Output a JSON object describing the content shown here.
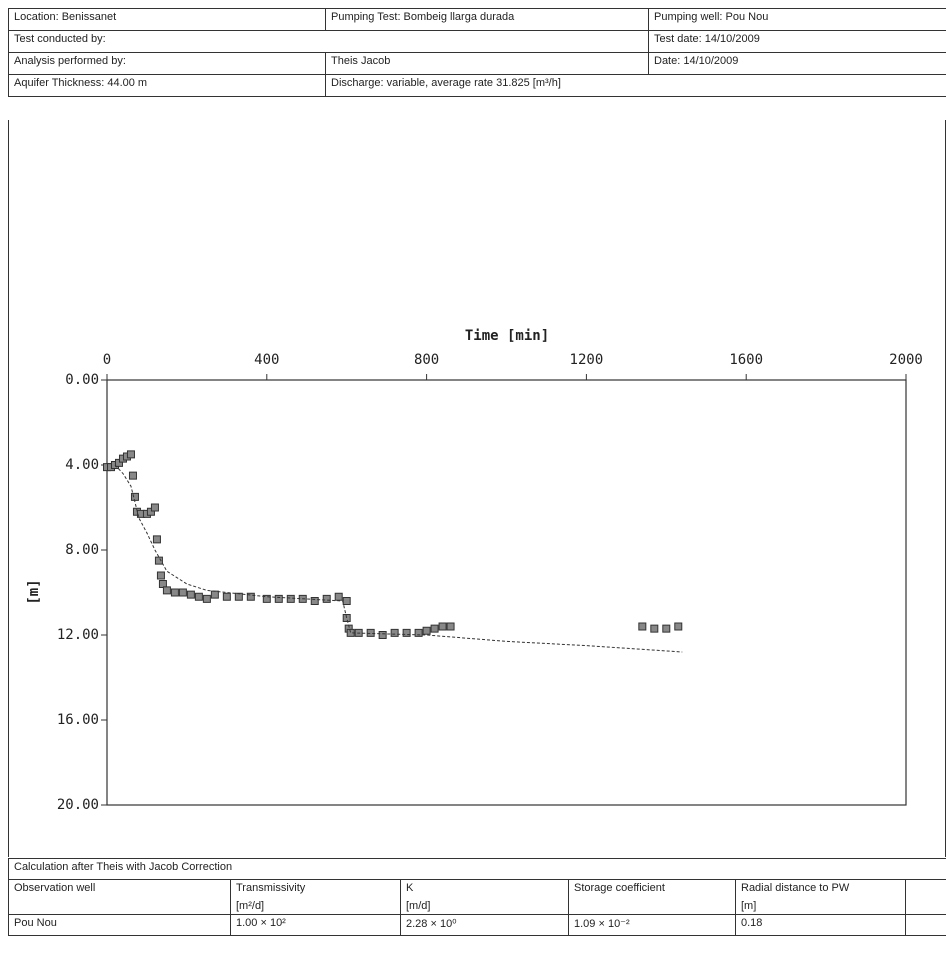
{
  "header": {
    "rows": [
      [
        "Location: Benissanet",
        "Pumping Test: Bombeig llarga durada",
        "Pumping well: Pou Nou"
      ],
      [
        "Test conducted by:",
        "Test date: 14/10/2009"
      ],
      [
        "Analysis performed by:",
        "Theis Jacob",
        "Date: 14/10/2009"
      ],
      [
        "Aquifer Thickness: 44.00 m",
        "Discharge: variable, average rate 31.825 [m³/h]"
      ]
    ]
  },
  "chart_data": {
    "type": "scatter",
    "x_label": "Time [min]",
    "y_label": "[m]",
    "xlim": [
      0,
      2000
    ],
    "xticks": [
      0,
      400,
      800,
      1200,
      1600,
      2000
    ],
    "ylim": [
      20,
      0
    ],
    "yticks": [
      {
        "value": 0,
        "label": "0.00"
      },
      {
        "value": 4,
        "label": "4.00"
      },
      {
        "value": 8,
        "label": "8.00"
      },
      {
        "value": 12,
        "label": "12.00"
      },
      {
        "value": 16,
        "label": "16.00"
      },
      {
        "value": 20,
        "label": "20.00"
      }
    ],
    "series": [
      {
        "type": "scatter",
        "color": "#888888",
        "x": [
          0,
          10,
          20,
          30,
          40,
          50,
          60,
          65,
          70,
          75,
          85,
          100,
          110,
          120,
          125,
          130,
          135,
          140,
          150,
          170,
          190,
          210,
          230,
          250,
          270,
          300,
          330,
          360,
          400,
          430,
          460,
          490,
          520,
          550,
          580,
          600,
          600,
          605,
          610,
          630,
          660,
          690,
          720,
          750,
          780,
          800,
          820,
          840,
          860,
          1340,
          1370,
          1400,
          1430
        ],
        "values": [
          4.1,
          4.1,
          4.0,
          3.9,
          3.7,
          3.6,
          3.5,
          4.5,
          5.5,
          6.2,
          6.3,
          6.3,
          6.2,
          6.0,
          7.5,
          8.5,
          9.2,
          9.6,
          9.9,
          10.0,
          10.0,
          10.1,
          10.2,
          10.3,
          10.1,
          10.2,
          10.2,
          10.2,
          10.3,
          10.3,
          10.3,
          10.3,
          10.4,
          10.3,
          10.2,
          10.4,
          11.2,
          11.7,
          11.9,
          11.9,
          11.9,
          12.0,
          11.9,
          11.9,
          11.9,
          11.8,
          11.7,
          11.6,
          11.6,
          11.6,
          11.7,
          11.7,
          11.6
        ]
      },
      {
        "type": "line",
        "color": "#333333",
        "x": [
          20,
          40,
          60,
          80,
          100,
          120,
          150,
          200,
          250,
          400,
          590,
          600,
          610,
          700,
          800,
          1000,
          1200,
          1440
        ],
        "values": [
          4.0,
          4.4,
          5.0,
          6.5,
          7.2,
          8.0,
          9.0,
          9.6,
          9.9,
          10.2,
          10.4,
          11.2,
          11.9,
          11.95,
          12.0,
          12.3,
          12.5,
          12.8
        ]
      }
    ]
  },
  "results": {
    "title": "Calculation after Theis with Jacob Correction",
    "columns": [
      [
        "Observation well"
      ],
      [
        "Transmissivity",
        "[m²/d]"
      ],
      [
        "K",
        "[m/d]"
      ],
      [
        "Storage coefficient"
      ],
      [
        "Radial distance to PW",
        "[m]"
      ]
    ],
    "rows": [
      [
        "Pou Nou",
        "1.00 × 10²",
        "2.28 × 10⁰",
        "1.09 × 10⁻²",
        "0.18"
      ]
    ]
  }
}
